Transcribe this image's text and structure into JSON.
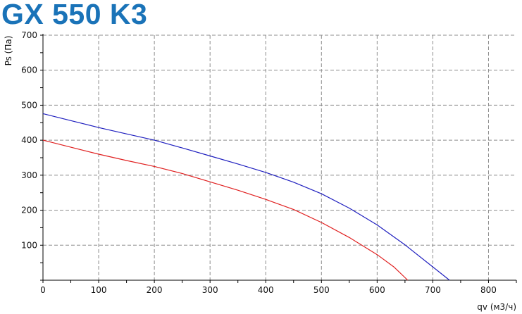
{
  "header": {
    "title": "GX 550 K3"
  },
  "chart_data": {
    "type": "line",
    "title": "GX 550 K3",
    "xlabel": "qv (м3/ч)",
    "ylabel": "Ps (Па)",
    "xlim": [
      0,
      850
    ],
    "ylim": [
      0,
      700
    ],
    "x_ticks": [
      "0",
      "100",
      "200",
      "300",
      "400",
      "500",
      "600",
      "700",
      "800"
    ],
    "y_ticks": [
      "100",
      "200",
      "300",
      "400",
      "500",
      "600",
      "700"
    ],
    "grid": true,
    "series": [
      {
        "color": "#1f1fbf",
        "points": [
          [
            0,
            476
          ],
          [
            50,
            456
          ],
          [
            100,
            436
          ],
          [
            150,
            418
          ],
          [
            200,
            400
          ],
          [
            250,
            378
          ],
          [
            300,
            355
          ],
          [
            350,
            332
          ],
          [
            400,
            308
          ],
          [
            450,
            280
          ],
          [
            500,
            247
          ],
          [
            550,
            206
          ],
          [
            600,
            158
          ],
          [
            650,
            101
          ],
          [
            700,
            38
          ],
          [
            730,
            0
          ]
        ]
      },
      {
        "color": "#e02020",
        "points": [
          [
            0,
            400
          ],
          [
            50,
            380
          ],
          [
            100,
            360
          ],
          [
            150,
            342
          ],
          [
            200,
            325
          ],
          [
            250,
            305
          ],
          [
            300,
            281
          ],
          [
            350,
            257
          ],
          [
            400,
            231
          ],
          [
            450,
            202
          ],
          [
            500,
            165
          ],
          [
            550,
            122
          ],
          [
            600,
            73
          ],
          [
            630,
            38
          ],
          [
            655,
            0
          ]
        ]
      }
    ]
  },
  "colors": {
    "title": "#1a73b8",
    "grid": "#8c8c8c"
  }
}
